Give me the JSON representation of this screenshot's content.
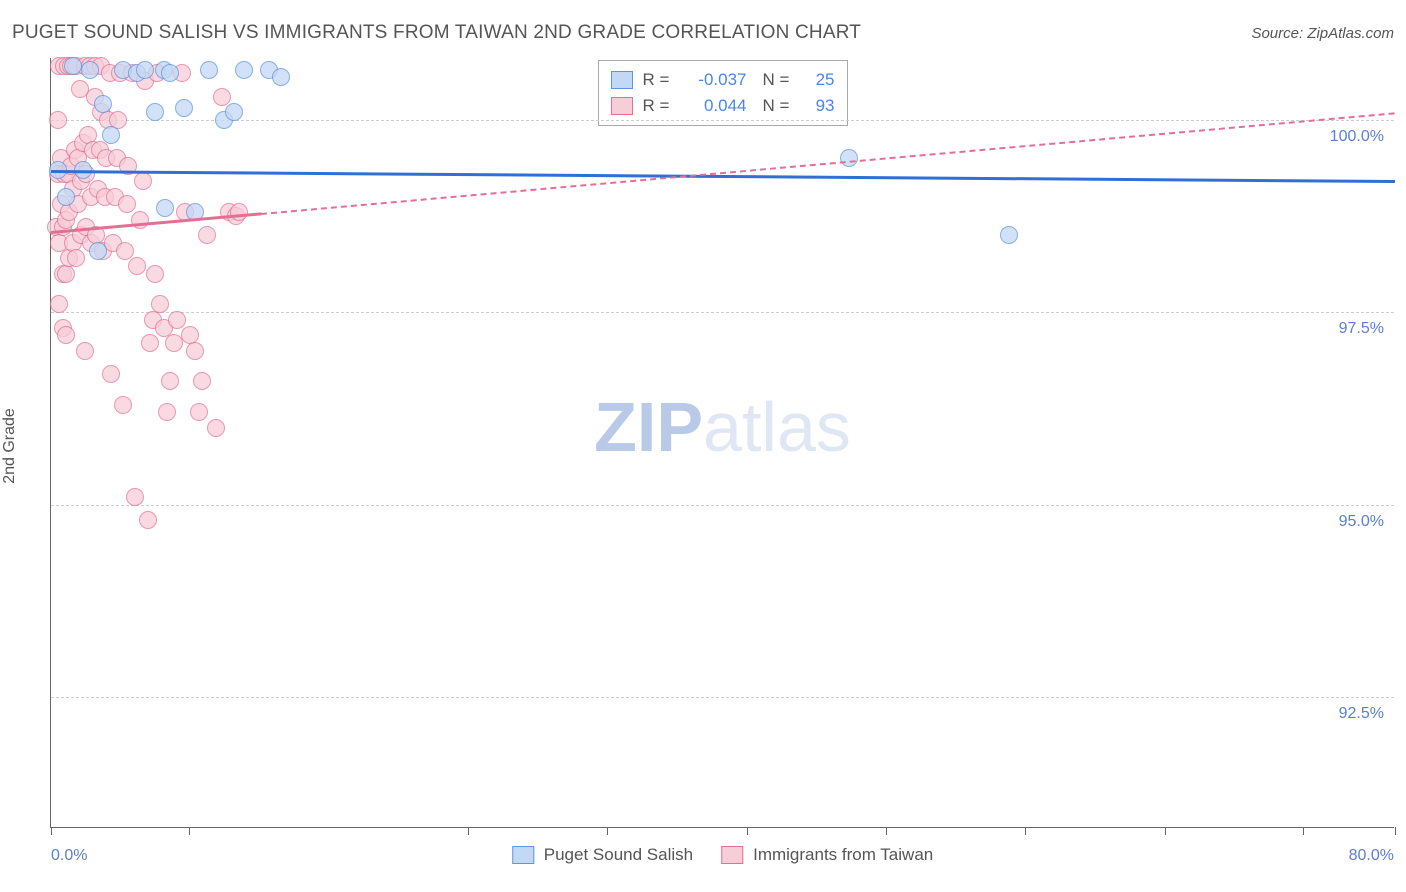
{
  "title": "PUGET SOUND SALISH VS IMMIGRANTS FROM TAIWAN 2ND GRADE CORRELATION CHART",
  "source": "Source: ZipAtlas.com",
  "ylabel": "2nd Grade",
  "watermark": {
    "bold": "ZIP",
    "light": "atlas",
    "bold_color": "#b9cae9",
    "light_color": "#dfe7f5"
  },
  "chart": {
    "type": "scatter",
    "background_color": "#ffffff",
    "grid_color": "#cccccc",
    "axis_color": "#666666",
    "xlim": [
      0.0,
      80.0
    ],
    "ylim": [
      90.8,
      100.8
    ],
    "xtick_positions": [
      0,
      8.2,
      24.8,
      33.1,
      41.4,
      49.7,
      58.0,
      66.3,
      74.5,
      80.0
    ],
    "xaxis_labels": [
      {
        "text": "0.0%",
        "x": 0.0
      },
      {
        "text": "80.0%",
        "x": 80.0
      }
    ],
    "ytick_values": [
      92.5,
      95.0,
      97.5,
      100.0
    ],
    "ytick_labels": [
      "92.5%",
      "95.0%",
      "97.5%",
      "100.0%"
    ],
    "series": [
      {
        "name": "Puget Sound Salish",
        "marker_fill": "#c3d8f5",
        "marker_stroke": "#5e95dd",
        "marker_opacity": 0.75,
        "marker_radius": 9,
        "R": "-0.037",
        "N": "25",
        "regression": {
          "x1": 0.0,
          "y1": 99.35,
          "x2": 80.0,
          "y2": 99.22,
          "color": "#2f6fd6",
          "width": 3,
          "dash_from_x": null
        },
        "points": [
          [
            0.4,
            99.35
          ],
          [
            0.9,
            99.0
          ],
          [
            1.3,
            100.7
          ],
          [
            1.9,
            99.35
          ],
          [
            2.3,
            100.65
          ],
          [
            2.8,
            98.3
          ],
          [
            3.1,
            100.2
          ],
          [
            3.6,
            99.8
          ],
          [
            4.3,
            100.65
          ],
          [
            5.1,
            100.6
          ],
          [
            5.6,
            100.65
          ],
          [
            6.2,
            100.1
          ],
          [
            6.7,
            100.65
          ],
          [
            6.8,
            98.85
          ],
          [
            7.1,
            100.6
          ],
          [
            7.9,
            100.15
          ],
          [
            8.6,
            98.8
          ],
          [
            9.4,
            100.65
          ],
          [
            10.3,
            100.0
          ],
          [
            10.9,
            100.1
          ],
          [
            11.5,
            100.65
          ],
          [
            13.0,
            100.65
          ],
          [
            13.7,
            100.55
          ],
          [
            47.5,
            99.5
          ],
          [
            57.0,
            98.5
          ]
        ]
      },
      {
        "name": "Immigrants from Taiwan",
        "marker_fill": "#f7cdd8",
        "marker_stroke": "#e36f93",
        "marker_opacity": 0.72,
        "marker_radius": 9,
        "R": "0.044",
        "N": "93",
        "regression": {
          "x1": 0.0,
          "y1": 98.55,
          "x2": 80.0,
          "y2": 100.1,
          "color": "#e36f93",
          "width": 3,
          "dash_from_x": 12.5
        },
        "points": [
          [
            0.3,
            98.6
          ],
          [
            0.4,
            99.3
          ],
          [
            0.4,
            100.0
          ],
          [
            0.5,
            97.6
          ],
          [
            0.5,
            98.4
          ],
          [
            0.5,
            100.7
          ],
          [
            0.6,
            98.9
          ],
          [
            0.6,
            99.5
          ],
          [
            0.7,
            97.3
          ],
          [
            0.7,
            98.0
          ],
          [
            0.7,
            98.6
          ],
          [
            0.8,
            99.3
          ],
          [
            0.8,
            100.7
          ],
          [
            0.9,
            97.2
          ],
          [
            0.9,
            98.0
          ],
          [
            0.9,
            98.7
          ],
          [
            1.0,
            99.3
          ],
          [
            1.0,
            100.7
          ],
          [
            1.1,
            98.2
          ],
          [
            1.1,
            98.8
          ],
          [
            1.2,
            99.4
          ],
          [
            1.2,
            100.7
          ],
          [
            1.3,
            98.4
          ],
          [
            1.3,
            99.1
          ],
          [
            1.4,
            99.6
          ],
          [
            1.5,
            100.7
          ],
          [
            1.5,
            98.2
          ],
          [
            1.6,
            98.9
          ],
          [
            1.6,
            99.5
          ],
          [
            1.7,
            100.4
          ],
          [
            1.8,
            98.5
          ],
          [
            1.8,
            99.2
          ],
          [
            1.9,
            99.7
          ],
          [
            2.0,
            100.7
          ],
          [
            2.0,
            97.0
          ],
          [
            2.1,
            98.6
          ],
          [
            2.1,
            99.3
          ],
          [
            2.2,
            99.8
          ],
          [
            2.3,
            100.7
          ],
          [
            2.4,
            98.4
          ],
          [
            2.4,
            99.0
          ],
          [
            2.5,
            99.6
          ],
          [
            2.6,
            100.3
          ],
          [
            2.6,
            100.7
          ],
          [
            2.7,
            98.5
          ],
          [
            2.8,
            99.1
          ],
          [
            2.9,
            99.6
          ],
          [
            3.0,
            100.1
          ],
          [
            3.0,
            100.7
          ],
          [
            3.1,
            98.3
          ],
          [
            3.2,
            99.0
          ],
          [
            3.3,
            99.5
          ],
          [
            3.4,
            100.0
          ],
          [
            3.5,
            100.6
          ],
          [
            3.6,
            96.7
          ],
          [
            3.7,
            98.4
          ],
          [
            3.8,
            99.0
          ],
          [
            3.9,
            99.5
          ],
          [
            4.0,
            100.0
          ],
          [
            4.1,
            100.6
          ],
          [
            4.3,
            96.3
          ],
          [
            4.4,
            98.3
          ],
          [
            4.5,
            98.9
          ],
          [
            4.6,
            99.4
          ],
          [
            4.8,
            100.6
          ],
          [
            5.0,
            95.1
          ],
          [
            5.1,
            98.1
          ],
          [
            5.3,
            98.7
          ],
          [
            5.5,
            99.2
          ],
          [
            5.6,
            100.5
          ],
          [
            5.8,
            94.8
          ],
          [
            5.9,
            97.1
          ],
          [
            6.1,
            97.4
          ],
          [
            6.2,
            98.0
          ],
          [
            6.3,
            100.6
          ],
          [
            6.5,
            97.6
          ],
          [
            6.7,
            97.3
          ],
          [
            6.9,
            96.2
          ],
          [
            7.1,
            96.6
          ],
          [
            7.3,
            97.1
          ],
          [
            7.5,
            97.4
          ],
          [
            7.8,
            100.6
          ],
          [
            8.0,
            98.8
          ],
          [
            8.3,
            97.2
          ],
          [
            8.6,
            97.0
          ],
          [
            8.8,
            96.2
          ],
          [
            9.0,
            96.6
          ],
          [
            9.3,
            98.5
          ],
          [
            9.8,
            96.0
          ],
          [
            10.2,
            100.3
          ],
          [
            10.6,
            98.8
          ],
          [
            11.0,
            98.75
          ],
          [
            11.2,
            98.8
          ]
        ]
      }
    ],
    "legend_top": [
      {
        "swatch_fill": "#c3d8f5",
        "swatch_stroke": "#5e95dd",
        "R_label": "R =",
        "R_value": "-0.037",
        "N_label": "N =",
        "N_value": "25"
      },
      {
        "swatch_fill": "#f7cdd8",
        "swatch_stroke": "#e36f93",
        "R_label": "R =",
        "R_value": "0.044",
        "N_label": "N =",
        "N_value": "93"
      }
    ],
    "legend_bottom": [
      {
        "swatch_fill": "#c3d8f5",
        "swatch_stroke": "#5e95dd",
        "label": "Puget Sound Salish"
      },
      {
        "swatch_fill": "#f7cdd8",
        "swatch_stroke": "#e36f93",
        "label": "Immigrants from Taiwan"
      }
    ]
  }
}
